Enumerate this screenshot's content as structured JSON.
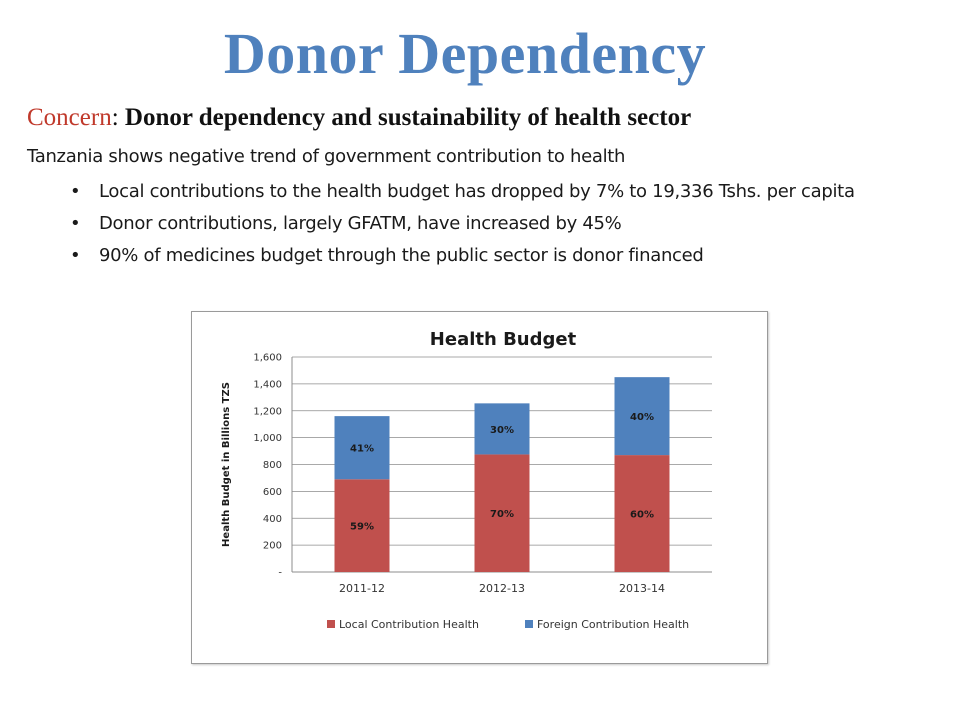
{
  "slide": {
    "title": "Donor Dependency",
    "concern_label": "Concern",
    "concern_text": "Donor dependency and sustainability of health sector",
    "intro": "Tanzania shows negative trend of government contribution to health",
    "bullets": [
      "Local contributions to the health budget has dropped by 7% to  19,336 Tshs. per capita",
      "Donor contributions, largely GFATM, have increased by 45%",
      "90% of medicines budget through the public sector is donor financed"
    ]
  },
  "chart_data": {
    "type": "bar",
    "stacked": true,
    "title": "Health Budget",
    "xlabel": "",
    "ylabel": "Health Budget in Billions TZS",
    "categories": [
      "2011-12",
      "2012-13",
      "2013-14"
    ],
    "ylim": [
      0,
      1600
    ],
    "yticks": [
      0,
      200,
      400,
      600,
      800,
      1000,
      1200,
      1400,
      1600
    ],
    "ytick_labels": [
      "-",
      "200",
      "400",
      "600",
      "800",
      "1,000",
      "1,200",
      "1,400",
      "1,600"
    ],
    "grid": true,
    "legend_position": "bottom",
    "series": [
      {
        "name": "Local Contribution Health",
        "values": [
          690,
          875,
          870
        ],
        "labels": [
          "59%",
          "70%",
          "60%"
        ],
        "color": "#c0504d"
      },
      {
        "name": "Foreign Contribution Health",
        "values": [
          470,
          380,
          580
        ],
        "labels": [
          "41%",
          "30%",
          "40%"
        ],
        "color": "#4f81bd"
      }
    ]
  }
}
